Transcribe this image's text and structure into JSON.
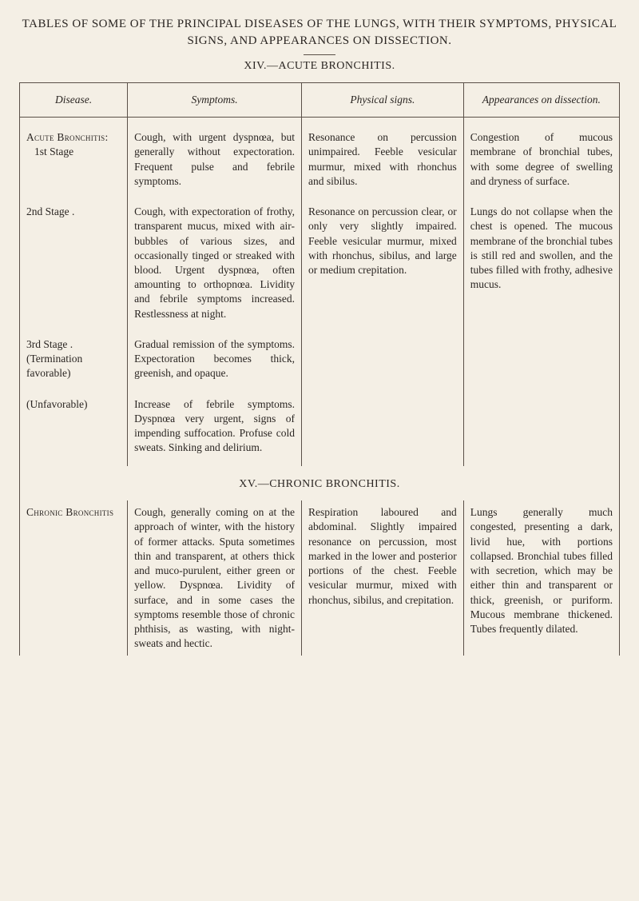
{
  "title": {
    "main": "TABLES OF SOME OF THE PRINCIPAL DISEASES OF THE LUNGS, WITH THEIR SYMPTOMS, PHYSICAL SIGNS, AND APPEARANCES ON DISSECTION.",
    "section_xiv": "XIV.—ACUTE BRONCHITIS.",
    "section_xv": "XV.—CHRONIC BRONCHITIS."
  },
  "headers": {
    "disease": "Disease.",
    "symptoms": "Symptoms.",
    "signs": "Physical signs.",
    "appearances": "Appearances on dissection."
  },
  "rows": [
    {
      "disease_name": "Acute Bronchitis",
      "disease_sub": ":",
      "stage": "1st Stage",
      "symptoms": "Cough, with urgent dyspnœa, but generally without expectoration. Frequent pulse and febrile symptoms.",
      "signs": "Resonance on percussion unimpaired. Feeble vesicular murmur, mixed with rhonchus and sibilus.",
      "appearances": "Congestion of mucous membrane of bronchial tubes, with some degree of swelling and dryness of surface."
    },
    {
      "disease_name": "",
      "stage": "2nd Stage     .",
      "symptoms": "Cough, with expectoration of frothy, transparent mucus, mixed with air-bubbles of various sizes, and occasionally tinged or streaked with blood. Urgent dyspnœa, often amounting to orthopnœa. Lividity and febrile symptoms increased. Restlessness at night.",
      "signs": "Resonance on percussion clear, or only very slightly impaired. Feeble vesicular murmur, mixed with rhonchus, sibilus, and large or medium crepitation.",
      "appearances": "Lungs do not collapse when the chest is opened. The mucous membrane of the bronchial tubes is still red and swollen, and the tubes filled with frothy, adhesive mucus."
    },
    {
      "disease_name": "",
      "stage": "3rd Stage      .",
      "stage2": "(Termination favorable)",
      "symptoms": "Gradual remission of the symptoms. Expectoration becomes thick, greenish, and opaque.",
      "signs": "",
      "appearances": ""
    },
    {
      "disease_name": "",
      "stage": "(Unfavorable)",
      "symptoms": "Increase of febrile symptoms. Dyspnœa very urgent, signs of impending suffocation. Profuse cold sweats. Sinking and delirium.",
      "signs": "",
      "appearances": ""
    },
    {
      "disease_name": "Chronic Bronchitis",
      "stage": "",
      "symptoms": "Cough, generally coming on at the approach of winter, with the history of former attacks. Sputa sometimes thin and transparent, at others thick and muco-purulent, either green or yellow. Dyspnœa. Lividity of surface, and in some cases the symptoms resemble those of chronic phthisis, as wasting, with night-sweats and hectic.",
      "signs": "Respiration laboured and abdominal. Slightly impaired resonance on percussion, most marked in the lower and posterior portions of the chest. Feeble vesicular murmur, mixed with rhonchus, sibilus, and crepitation.",
      "appearances": "Lungs generally much congested, presenting a dark, livid hue, with portions collapsed. Bronchial tubes filled with secretion, which may be either thin and transparent or thick, greenish, or puriform. Mucous membrane thickened. Tubes frequently dilated."
    }
  ],
  "style": {
    "background_color": "#f4efe5",
    "text_color": "#2a2522",
    "border_color": "#5a5048",
    "body_font_size": 13.5,
    "header_font_size": 14,
    "title_font_size": 15
  }
}
